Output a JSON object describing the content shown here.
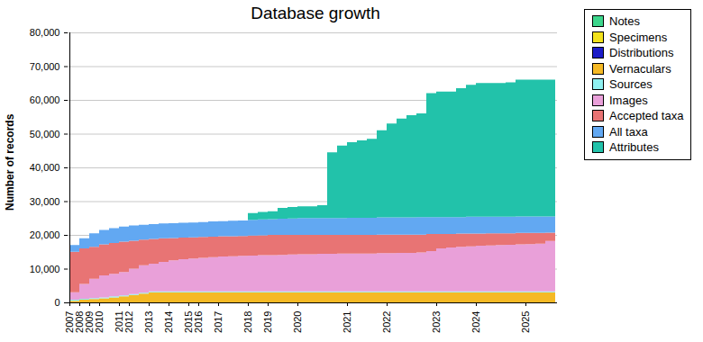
{
  "chart_data": {
    "type": "area",
    "title": "Database growth",
    "y_label": "Number of records",
    "stacked": true,
    "grid": true,
    "legend": "right",
    "ylim": [
      0,
      80000
    ],
    "yticks": [
      0,
      {
        "value": 10000,
        "label": "10,000"
      },
      {
        "value": 20000,
        "label": "20,000"
      },
      {
        "value": 30000,
        "label": "30,000"
      },
      {
        "value": 40000,
        "label": "40,000"
      },
      {
        "value": 50000,
        "label": "50,000"
      },
      {
        "value": 60000,
        "label": "60,000"
      },
      {
        "value": 70000,
        "label": "70,000"
      },
      {
        "value": 80000,
        "label": "80,000"
      }
    ],
    "categories": [
      "2007",
      "2008",
      "2009",
      "2010",
      null,
      "2011",
      "2012",
      null,
      "2013",
      null,
      "2014",
      null,
      "2015",
      "2016",
      null,
      "2017",
      null,
      null,
      "2018",
      null,
      "2019",
      null,
      null,
      "2020",
      null,
      null,
      null,
      null,
      "2021",
      null,
      null,
      null,
      "2022",
      null,
      null,
      null,
      null,
      "2023",
      null,
      null,
      null,
      "2024",
      null,
      null,
      null,
      null,
      "2025",
      null,
      null,
      null
    ],
    "series": [
      {
        "name": "Notes",
        "color": "#3dd68c",
        "values": [
          0,
          0,
          0,
          0,
          0,
          0,
          0,
          0,
          0,
          0,
          0,
          0,
          0,
          0,
          0,
          0,
          0,
          0,
          0,
          0,
          0,
          0,
          0,
          0,
          0,
          0,
          0,
          0,
          0,
          0,
          0,
          0,
          0,
          0,
          0,
          0,
          0,
          0,
          0,
          0,
          0,
          0,
          0,
          0,
          0,
          0,
          0,
          0,
          0,
          0
        ]
      },
      {
        "name": "Specimens",
        "color": "#f2e21c",
        "values": [
          0,
          0,
          0,
          0,
          0,
          0,
          0,
          0,
          0,
          0,
          0,
          0,
          0,
          0,
          0,
          0,
          0,
          0,
          0,
          0,
          0,
          0,
          0,
          0,
          0,
          0,
          0,
          0,
          0,
          0,
          0,
          0,
          0,
          0,
          0,
          0,
          0,
          0,
          0,
          0,
          0,
          0,
          0,
          0,
          0,
          0,
          0,
          0,
          0,
          0
        ]
      },
      {
        "name": "Distributions",
        "color": "#1c1cc8",
        "values": [
          0,
          0,
          0,
          0,
          0,
          0,
          0,
          0,
          0,
          0,
          0,
          0,
          0,
          0,
          0,
          0,
          0,
          0,
          0,
          0,
          0,
          0,
          0,
          0,
          0,
          0,
          0,
          0,
          0,
          0,
          0,
          0,
          0,
          0,
          0,
          0,
          0,
          0,
          0,
          0,
          0,
          0,
          0,
          0,
          0,
          0,
          0,
          0,
          0,
          0
        ]
      },
      {
        "name": "Vernaculars",
        "color": "#f5b925",
        "values": [
          500,
          800,
          1000,
          1200,
          1500,
          1800,
          2200,
          2600,
          3000,
          3000,
          3000,
          3000,
          3000,
          3000,
          3000,
          3000,
          3000,
          3000,
          3000,
          3000,
          3000,
          3000,
          3000,
          3000,
          3000,
          3000,
          3000,
          3000,
          3000,
          3000,
          3000,
          3000,
          3000,
          3000,
          3000,
          3000,
          3000,
          3000,
          3000,
          3000,
          3000,
          3000,
          3000,
          3000,
          3000,
          3000,
          3000,
          3000,
          3000,
          3000
        ]
      },
      {
        "name": "Sources",
        "color": "#8ef0f0",
        "values": [
          300,
          300,
          300,
          300,
          300,
          300,
          300,
          300,
          300,
          300,
          300,
          300,
          300,
          300,
          300,
          300,
          300,
          300,
          300,
          300,
          300,
          300,
          300,
          300,
          300,
          300,
          300,
          300,
          300,
          300,
          300,
          300,
          300,
          300,
          300,
          300,
          300,
          300,
          300,
          300,
          300,
          300,
          300,
          300,
          300,
          300,
          300,
          300,
          300,
          300
        ]
      },
      {
        "name": "Images",
        "color": "#e9a0d9",
        "values": [
          2200,
          4400,
          5700,
          6500,
          6700,
          6900,
          7500,
          8100,
          8200,
          8700,
          9200,
          9500,
          9700,
          9900,
          10100,
          10300,
          10400,
          10500,
          10600,
          10700,
          10700,
          10800,
          10900,
          11000,
          11000,
          11100,
          11100,
          11200,
          11200,
          11200,
          11200,
          11300,
          11300,
          11400,
          11400,
          11500,
          11900,
          12700,
          13000,
          13200,
          13300,
          13500,
          13600,
          13700,
          13800,
          13900,
          14000,
          14100,
          14900,
          15000
        ]
      },
      {
        "name": "Accepted taxa",
        "color": "#e87474",
        "values": [
          12000,
          10500,
          9500,
          9200,
          9100,
          9000,
          8300,
          7600,
          7300,
          7000,
          6600,
          6400,
          6300,
          6200,
          6100,
          6000,
          5900,
          5900,
          5900,
          5900,
          6000,
          5900,
          5800,
          5700,
          5700,
          5600,
          5600,
          5500,
          5500,
          5500,
          5500,
          5500,
          5500,
          5400,
          5400,
          5300,
          5100,
          4300,
          4000,
          3900,
          3800,
          3600,
          3600,
          3500,
          3400,
          3400,
          3300,
          3200,
          2500,
          2400
        ]
      },
      {
        "name": "All taxa",
        "color": "#62a8f2",
        "values": [
          2000,
          3000,
          4000,
          4300,
          4400,
          4500,
          4500,
          4400,
          4400,
          4400,
          4400,
          4400,
          4400,
          4400,
          4500,
          4500,
          4600,
          4600,
          4700,
          4700,
          4700,
          4800,
          4900,
          5000,
          5000,
          5000,
          5000,
          5000,
          5100,
          5100,
          5100,
          5100,
          5100,
          5100,
          5100,
          5200,
          5000,
          5000,
          5000,
          4900,
          5000,
          5000,
          4900,
          4900,
          4900,
          4900,
          4900,
          4900,
          4800,
          4800
        ]
      },
      {
        "name": "Attributes",
        "color": "#22c2aa",
        "values": [
          0,
          0,
          0,
          0,
          0,
          0,
          0,
          0,
          0,
          0,
          0,
          0,
          0,
          0,
          0,
          0,
          0,
          0,
          2000,
          2200,
          2300,
          3200,
          3400,
          3500,
          3500,
          3800,
          19500,
          21500,
          22400,
          22900,
          23400,
          25800,
          27800,
          29300,
          30300,
          30700,
          36700,
          37200,
          37200,
          38200,
          39100,
          39600,
          39600,
          39600,
          39800,
          40500,
          40500,
          40500,
          40500,
          40500
        ]
      }
    ]
  }
}
